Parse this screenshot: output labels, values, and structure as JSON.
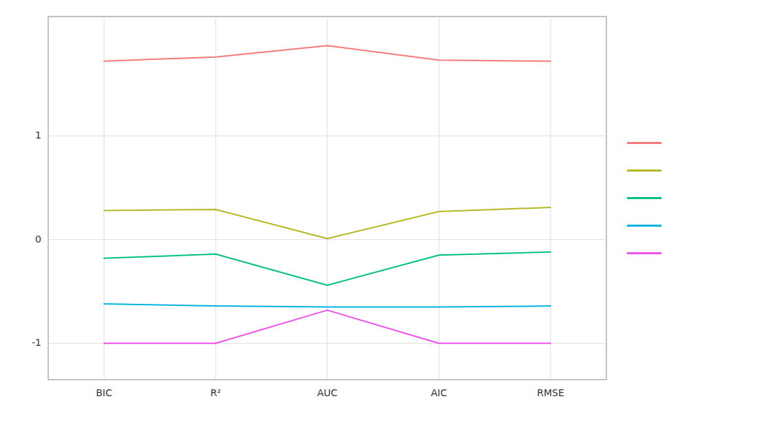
{
  "chart_data": {
    "type": "line",
    "categories": [
      "BIC",
      "R²",
      "AUC",
      "AIC",
      "RMSE"
    ],
    "series": [
      {
        "color": "#f47a7a",
        "values": [
          1.72,
          1.76,
          1.87,
          1.73,
          1.72
        ]
      },
      {
        "color": "#b5b820",
        "values": [
          0.28,
          0.29,
          0.01,
          0.27,
          0.31
        ]
      },
      {
        "color": "#00c080",
        "values": [
          -0.18,
          -0.14,
          -0.44,
          -0.15,
          -0.12
        ]
      },
      {
        "color": "#00b4e0",
        "values": [
          -0.62,
          -0.64,
          -0.65,
          -0.65,
          -0.64
        ]
      },
      {
        "color": "#ee50ee",
        "values": [
          -1.0,
          -1.0,
          -0.68,
          -1.0,
          -1.0
        ]
      }
    ],
    "ylim": [
      -1.35,
      2.15
    ],
    "yticks": [
      -1,
      0,
      1
    ],
    "grid": true,
    "legend": "right"
  }
}
